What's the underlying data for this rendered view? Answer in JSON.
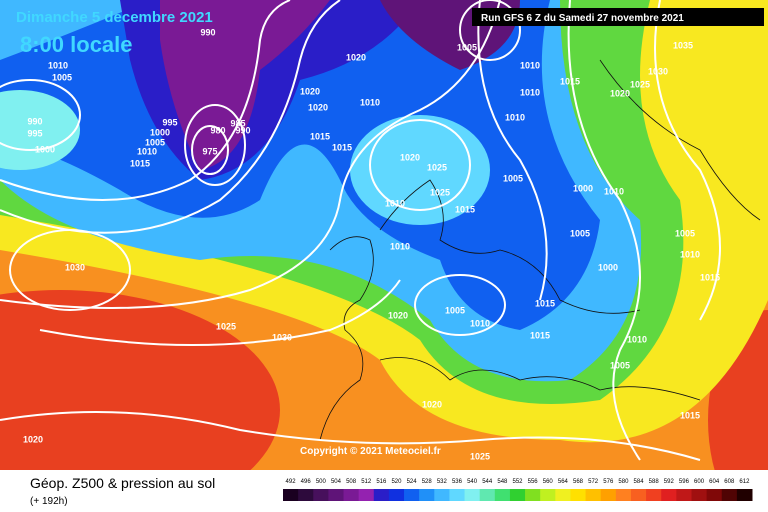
{
  "header": {
    "date": "Dimanche 5 decembre 2021",
    "time": "8:00 locale",
    "run": "Run GFS 6 Z du Samedi 27 novembre 2021"
  },
  "copyright": "Copyright © 2021 Meteociel.fr",
  "isobar_labels": [
    990,
    1010,
    1005,
    990,
    995,
    1000,
    995,
    1000,
    1005,
    1010,
    1015,
    985,
    990,
    980,
    975,
    1020,
    1020,
    1020,
    1015,
    1010,
    1015,
    1010,
    1010,
    1005,
    1015,
    1010,
    1035,
    1030,
    1025,
    1020,
    1020,
    1025,
    1025,
    1015,
    1010,
    1010,
    1005,
    1000,
    1010,
    1005,
    1005,
    1010,
    1000,
    1015,
    1015,
    1020,
    1005,
    1010,
    1015,
    1010,
    1005,
    1015,
    1030,
    1025,
    1030,
    1020,
    1020,
    1025
  ],
  "legend": {
    "title": "Géop. Z500 & pression au sol",
    "lead": "(+ 192h)",
    "values": [
      492,
      496,
      500,
      504,
      508,
      512,
      516,
      520,
      524,
      528,
      532,
      536,
      540,
      544,
      548,
      552,
      556,
      560,
      564,
      568,
      572,
      576,
      580,
      584,
      588,
      592,
      596,
      600,
      604,
      608,
      612
    ],
    "colors": [
      "#1a0020",
      "#2d0a3c",
      "#47105c",
      "#5f1478",
      "#7a1a95",
      "#9422b0",
      "#2a1ec8",
      "#1030e0",
      "#1060f0",
      "#2090f8",
      "#40b8ff",
      "#60d8ff",
      "#80f0f0",
      "#60e8b0",
      "#40e070",
      "#30d030",
      "#80e020",
      "#c0f020",
      "#f0f020",
      "#ffe000",
      "#ffc000",
      "#ffa000",
      "#ff8020",
      "#f86020",
      "#f04020",
      "#e02020",
      "#c01818",
      "#a01010",
      "#800808",
      "#500404",
      "#200000"
    ]
  }
}
